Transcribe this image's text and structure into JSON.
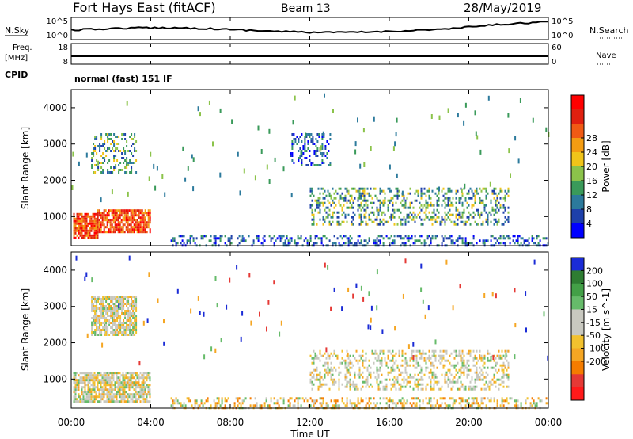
{
  "header": {
    "radar": "Fort Hays East (fitACF)",
    "beam": "Beam 13",
    "date": "28/May/2019"
  },
  "strips": {
    "nsky_label": "N.Sky",
    "nsky_ticks": [
      "10^5",
      "10^0"
    ],
    "nsearch_label": "N.Search",
    "nsearch_ticks": [
      "10^5",
      "10^0"
    ],
    "freq_label": "Freq.",
    "freq_unit": "[MHz]",
    "freq_ticks": [
      "18",
      "8"
    ],
    "nave_label": "Nave",
    "nave_ticks": [
      "60",
      "0"
    ],
    "cpid_label": "CPID",
    "cpid_text": "normal (fast) 151 IF"
  },
  "chart_data": [
    {
      "type": "heatmap",
      "name": "power",
      "ylabel": "Slant Range [km]",
      "yticks": [
        "1000",
        "2000",
        "3000",
        "4000"
      ],
      "ylim": [
        200,
        4500
      ],
      "xlim_hours": [
        0,
        24
      ],
      "colorbar": {
        "label": "Power [dB]",
        "ticks": [
          "4",
          "8",
          "12",
          "16",
          "20",
          "24",
          "28"
        ],
        "colors": [
          "#0000ff",
          "#1e40aa",
          "#2c7a9c",
          "#3a9a5a",
          "#8bc34a",
          "#f0c419",
          "#f39c12",
          "#f05a14",
          "#e02010",
          "#ff0000"
        ]
      },
      "regions": [
        {
          "t": [
            0.1,
            1.3
          ],
          "r": [
            400,
            1100
          ],
          "level": "strong"
        },
        {
          "t": [
            1.3,
            4.0
          ],
          "r": [
            600,
            1200
          ],
          "level": "strong"
        },
        {
          "t": [
            1.0,
            3.3
          ],
          "r": [
            2200,
            3300
          ],
          "level": "moderate"
        },
        {
          "t": [
            11.0,
            13.0
          ],
          "r": [
            2400,
            3300
          ],
          "level": "weak"
        },
        {
          "t": [
            12.0,
            22.0
          ],
          "r": [
            800,
            1800
          ],
          "level": "moderate"
        },
        {
          "t": [
            5.0,
            24.0
          ],
          "r": [
            200,
            500
          ],
          "level": "weak"
        }
      ]
    },
    {
      "type": "heatmap",
      "name": "velocity",
      "ylabel": "Slant Range [km]",
      "yticks": [
        "1000",
        "2000",
        "3000",
        "4000"
      ],
      "ylim": [
        200,
        4500
      ],
      "xlim_hours": [
        0,
        24
      ],
      "colorbar": {
        "label": "Velocity [m s^-1]",
        "ticks": [
          "200",
          "100",
          "50",
          "15",
          "-15",
          "-50",
          "-100",
          "-200"
        ],
        "colors": [
          "#1a2bd6",
          "#2e7d32",
          "#43a047",
          "#66bb6a",
          "#c8c8c0",
          "#c8c8c0",
          "#f2c12e",
          "#f5a623",
          "#f57c00",
          "#e53935",
          "#ff1a1a"
        ]
      },
      "regions": [
        {
          "t": [
            0.1,
            4.0
          ],
          "r": [
            400,
            1200
          ],
          "level": "low"
        },
        {
          "t": [
            1.0,
            3.3
          ],
          "r": [
            2200,
            3300
          ],
          "level": "low"
        },
        {
          "t": [
            12.0,
            22.0
          ],
          "r": [
            700,
            1800
          ],
          "level": "low"
        },
        {
          "t": [
            5.0,
            24.0
          ],
          "r": [
            200,
            500
          ],
          "level": "negative"
        }
      ]
    }
  ],
  "xaxis": {
    "ticks": [
      "00:00",
      "04:00",
      "08:00",
      "12:00",
      "16:00",
      "20:00",
      "00:00"
    ],
    "label": "Time UT"
  }
}
